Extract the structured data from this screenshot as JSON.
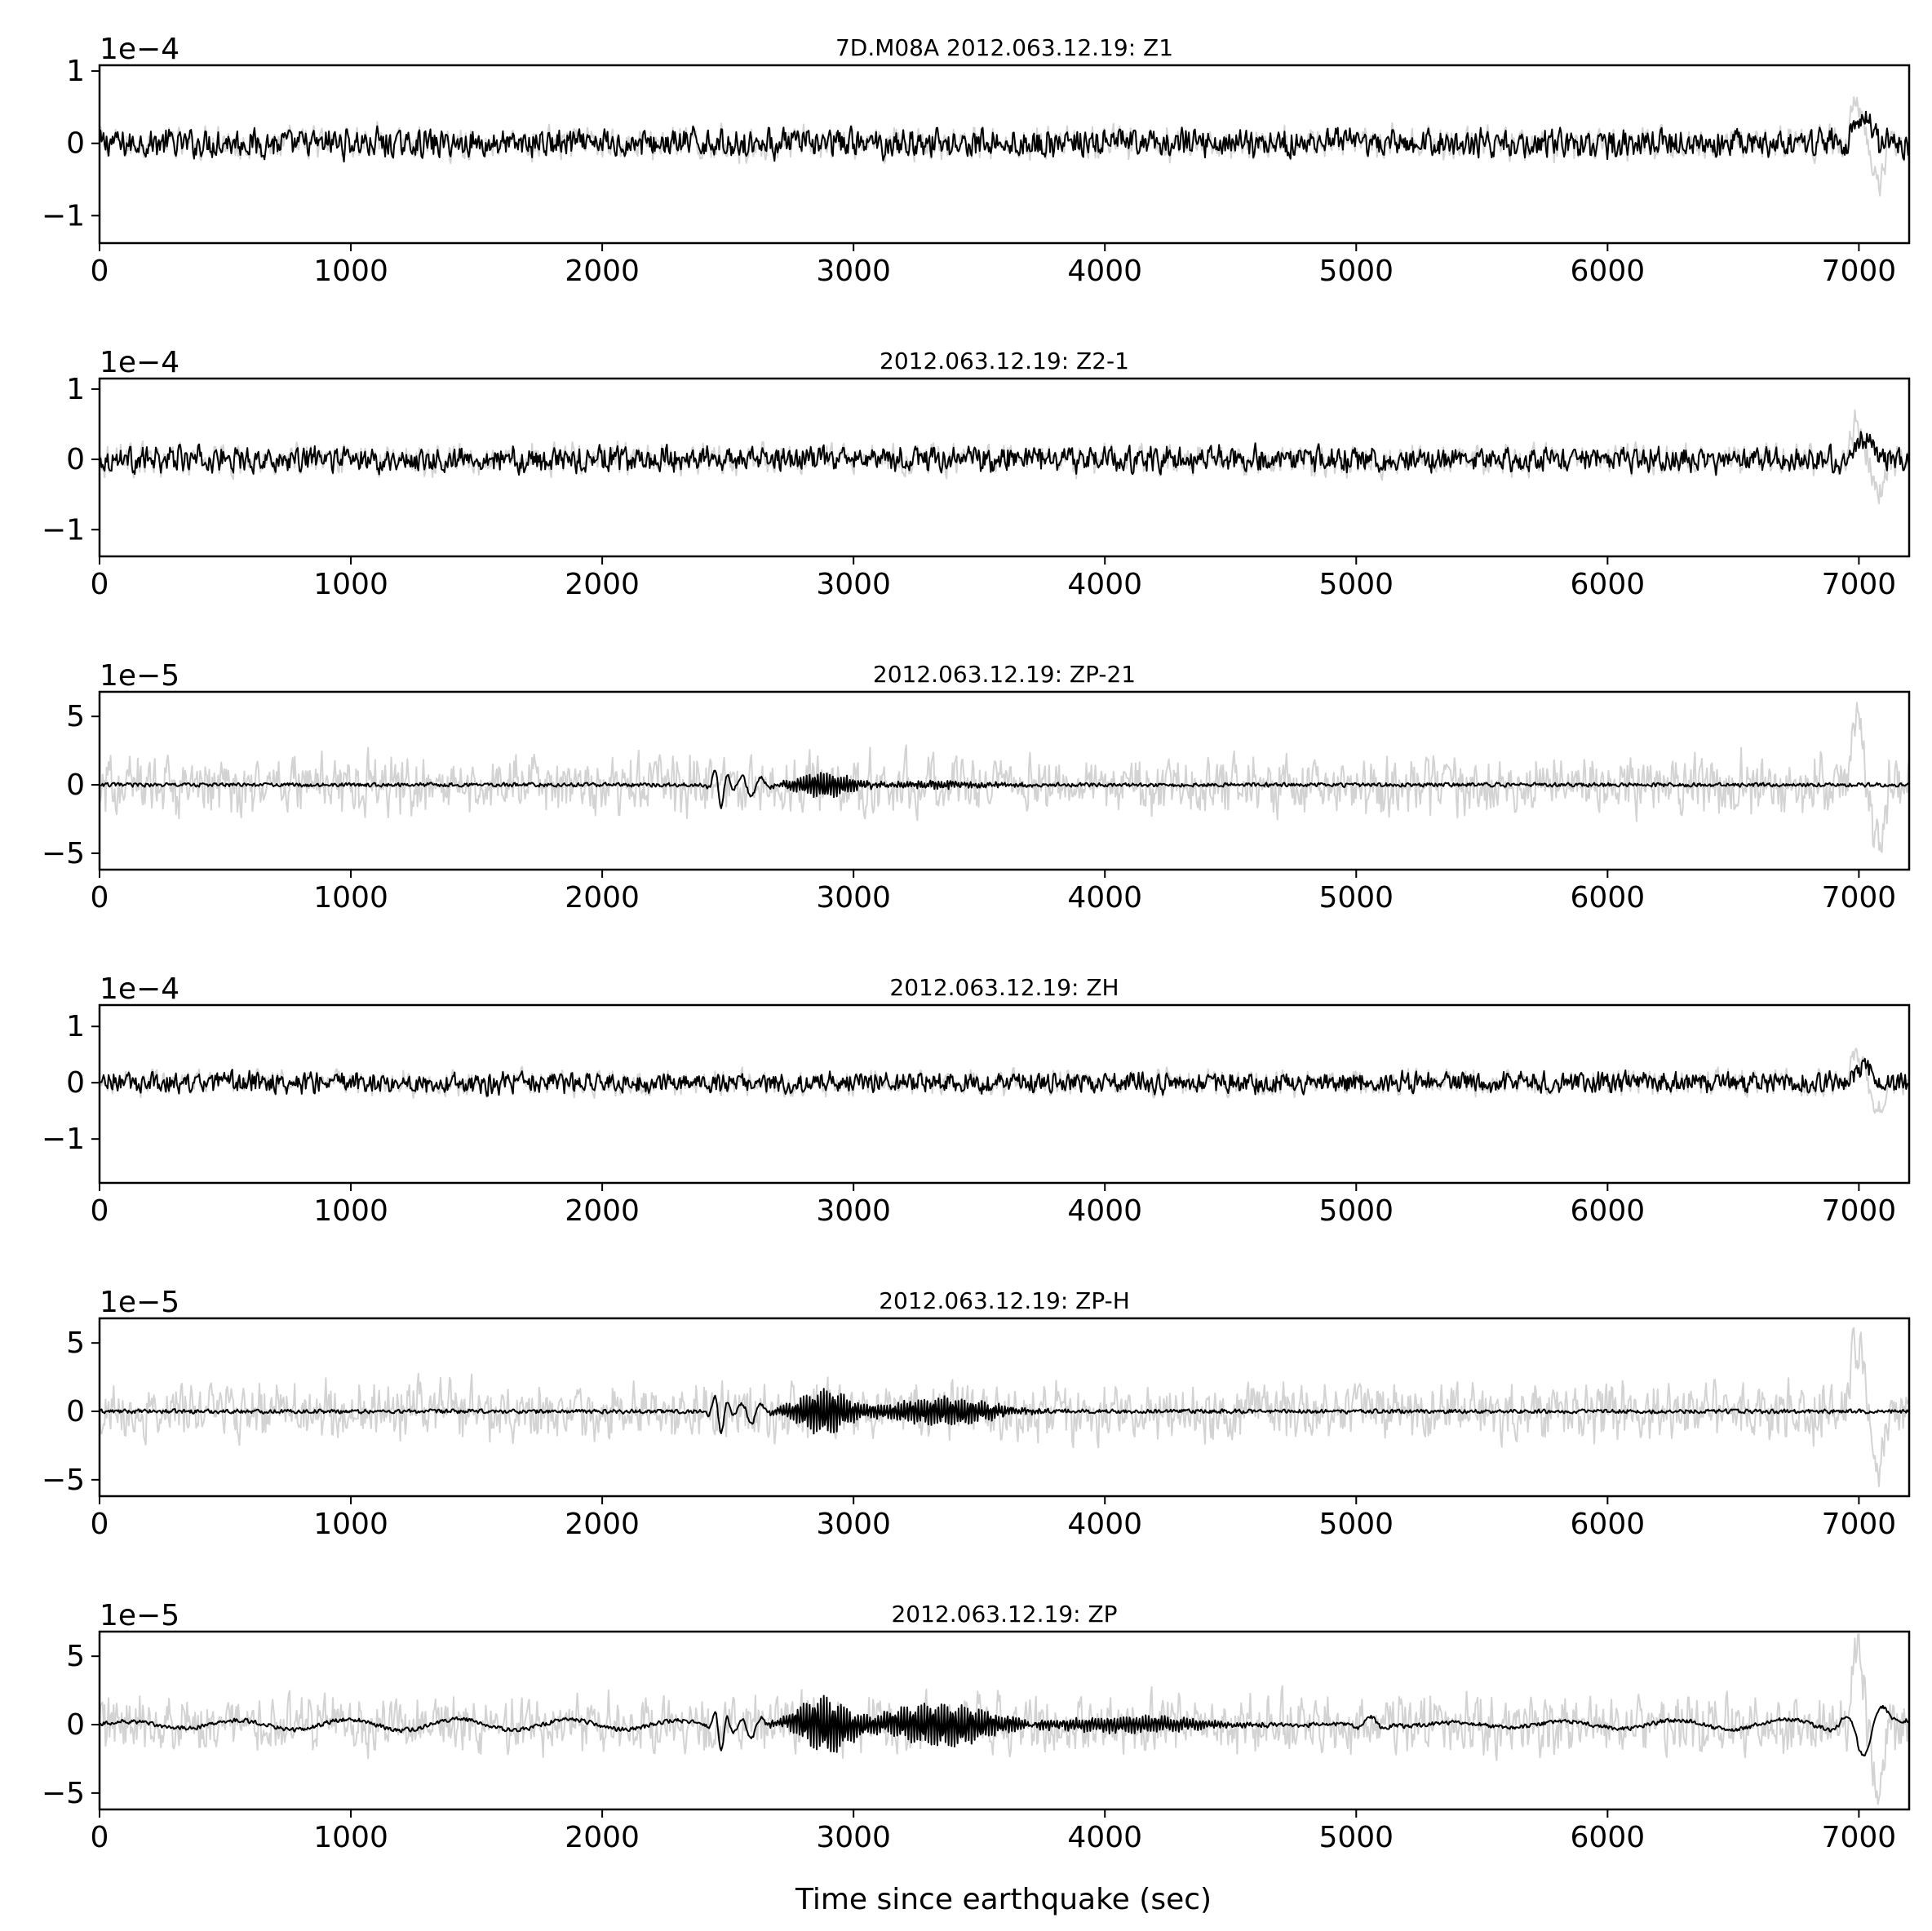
{
  "chart_data": [
    {
      "type": "line",
      "title": "7D.M08A 2012.063.12.19: Z1",
      "offset_label": "1e−4",
      "xlim": [
        0,
        7200
      ],
      "ylim": [
        -1.38,
        1.08
      ],
      "xticks": [
        0,
        1000,
        2000,
        3000,
        4000,
        5000,
        6000,
        7000
      ],
      "yticks": [
        1,
        0,
        -1
      ],
      "ytick_labels": [
        "1",
        "0",
        "−1"
      ],
      "series": [
        {
          "role": "raw",
          "color": "#d3d3d3",
          "amplitude": 0.28,
          "duration": 7200
        },
        {
          "role": "corrected",
          "color": "#000000",
          "amplitude": 0.25,
          "duration": 7200
        }
      ]
    },
    {
      "type": "line",
      "title": "2012.063.12.19: Z2-1",
      "offset_label": "1e−4",
      "xlim": [
        0,
        7200
      ],
      "ylim": [
        -1.38,
        1.15
      ],
      "xticks": [
        0,
        1000,
        2000,
        3000,
        4000,
        5000,
        6000,
        7000
      ],
      "yticks": [
        1,
        0,
        -1
      ],
      "ytick_labels": [
        "1",
        "0",
        "−1"
      ],
      "series": [
        {
          "role": "raw",
          "color": "#d3d3d3",
          "amplitude": 0.28,
          "duration": 7200
        },
        {
          "role": "corrected",
          "color": "#000000",
          "amplitude": 0.24,
          "duration": 7200
        }
      ]
    },
    {
      "type": "line",
      "title": "2012.063.12.19: ZP-21",
      "offset_label": "1e−5",
      "xlim": [
        0,
        7200
      ],
      "ylim": [
        -6.2,
        6.8
      ],
      "xticks": [
        0,
        1000,
        2000,
        3000,
        4000,
        5000,
        6000,
        7000
      ],
      "yticks": [
        5,
        0,
        -5
      ],
      "ytick_labels": [
        "5",
        "0",
        "−5"
      ],
      "series": [
        {
          "role": "raw",
          "color": "#d3d3d3",
          "amplitude": 2.6,
          "duration": 7200
        },
        {
          "role": "corrected",
          "color": "#000000",
          "amplitude": 0.3,
          "duration": 7200
        }
      ]
    },
    {
      "type": "line",
      "title": "2012.063.12.19: ZH",
      "offset_label": "1e−4",
      "xlim": [
        0,
        7200
      ],
      "ylim": [
        -1.78,
        1.38
      ],
      "xticks": [
        0,
        1000,
        2000,
        3000,
        4000,
        5000,
        6000,
        7000
      ],
      "yticks": [
        1,
        0,
        -1
      ],
      "ytick_labels": [
        "1",
        "0",
        "−1"
      ],
      "series": [
        {
          "role": "raw",
          "color": "#d3d3d3",
          "amplitude": 0.28,
          "duration": 7200
        },
        {
          "role": "corrected",
          "color": "#000000",
          "amplitude": 0.24,
          "duration": 7200
        }
      ]
    },
    {
      "type": "line",
      "title": "2012.063.12.19: ZP-H",
      "offset_label": "1e−5",
      "xlim": [
        0,
        7200
      ],
      "ylim": [
        -6.2,
        6.8
      ],
      "xticks": [
        0,
        1000,
        2000,
        3000,
        4000,
        5000,
        6000,
        7000
      ],
      "yticks": [
        5,
        0,
        -5
      ],
      "ytick_labels": [
        "5",
        "0",
        "−5"
      ],
      "series": [
        {
          "role": "raw",
          "color": "#d3d3d3",
          "amplitude": 2.6,
          "duration": 7200
        },
        {
          "role": "corrected",
          "color": "#000000",
          "amplitude": 0.3,
          "duration": 7200
        }
      ]
    },
    {
      "type": "line",
      "title": "2012.063.12.19: ZP",
      "offset_label": "1e−5",
      "xlabel": "Time since earthquake (sec)",
      "xlim": [
        0,
        7200
      ],
      "ylim": [
        -6.2,
        6.8
      ],
      "xticks": [
        0,
        1000,
        2000,
        3000,
        4000,
        5000,
        6000,
        7000
      ],
      "yticks": [
        5,
        0,
        -5
      ],
      "ytick_labels": [
        "5",
        "0",
        "−5"
      ],
      "series": [
        {
          "role": "raw",
          "color": "#d3d3d3",
          "amplitude": 2.6,
          "duration": 7200
        },
        {
          "role": "corrected",
          "color": "#000000",
          "amplitude": 0.3,
          "duration": 7200
        }
      ]
    }
  ]
}
